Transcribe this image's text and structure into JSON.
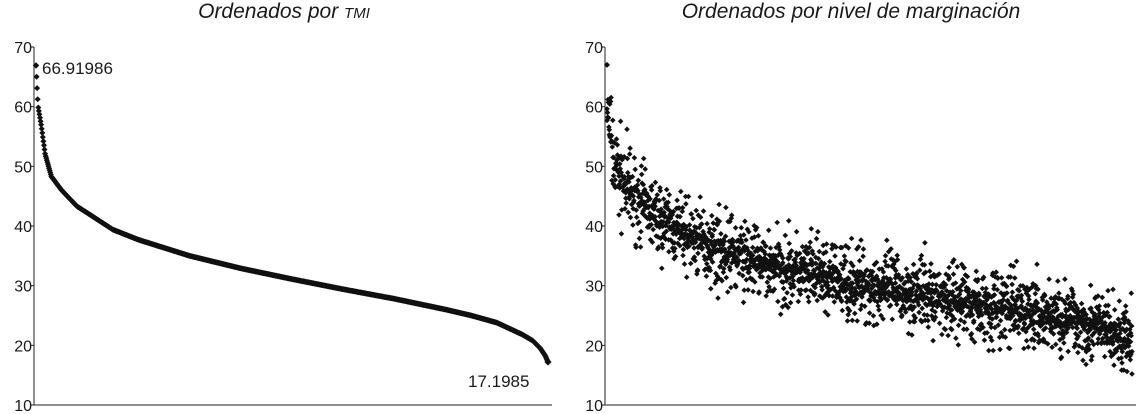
{
  "chart_data": [
    {
      "type": "scatter",
      "title": "Ordenados por TMI",
      "title_parts": {
        "main": "Ordenados por ",
        "small": "TMI"
      },
      "xlabel": "",
      "ylabel": "",
      "ylim": [
        10,
        70
      ],
      "yticks": [
        "10",
        "20",
        "30",
        "40",
        "50",
        "60",
        "70"
      ],
      "grid": false,
      "marker": "diamond",
      "color": "#111111",
      "profile": [
        [
          0,
          66.9
        ],
        [
          0.004,
          60.1
        ],
        [
          0.01,
          57
        ],
        [
          0.018,
          52
        ],
        [
          0.03,
          48.3
        ],
        [
          0.05,
          46
        ],
        [
          0.08,
          43.3
        ],
        [
          0.1,
          42.2
        ],
        [
          0.15,
          39.4
        ],
        [
          0.2,
          37.7
        ],
        [
          0.3,
          35
        ],
        [
          0.4,
          32.9
        ],
        [
          0.5,
          31.1
        ],
        [
          0.6,
          29.4
        ],
        [
          0.7,
          27.8
        ],
        [
          0.8,
          26
        ],
        [
          0.85,
          25
        ],
        [
          0.9,
          23.8
        ],
        [
          0.95,
          21.8
        ],
        [
          0.97,
          20.8
        ],
        [
          0.985,
          19.5
        ],
        [
          0.995,
          18.2
        ],
        [
          1,
          17.2
        ]
      ],
      "annotations": [
        {
          "text": "66.91986",
          "value": 66.91986,
          "position": "first point"
        },
        {
          "text": "17.1985",
          "value": 17.1985,
          "position": "last point"
        }
      ]
    },
    {
      "type": "scatter",
      "title": "Ordenados por nivel de marginación",
      "xlabel": "",
      "ylabel": "",
      "ylim": [
        10,
        70
      ],
      "yticks": [
        "10",
        "20",
        "30",
        "40",
        "50",
        "60",
        "70"
      ],
      "grid": false,
      "marker": "diamond",
      "color": "#111111",
      "trend": [
        [
          0,
          60
        ],
        [
          0.005,
          56
        ],
        [
          0.015,
          50
        ],
        [
          0.04,
          46
        ],
        [
          0.1,
          41
        ],
        [
          0.2,
          36.5
        ],
        [
          0.3,
          33.5
        ],
        [
          0.4,
          31.5
        ],
        [
          0.5,
          30
        ],
        [
          0.6,
          28.5
        ],
        [
          0.7,
          27
        ],
        [
          0.8,
          25.5
        ],
        [
          0.9,
          24
        ],
        [
          0.95,
          22.5
        ],
        [
          1,
          20
        ]
      ],
      "spread": 3.2,
      "outliers": [
        {
          "x": 0,
          "y": 67
        },
        {
          "x": 0.68,
          "y": 33
        }
      ]
    }
  ]
}
